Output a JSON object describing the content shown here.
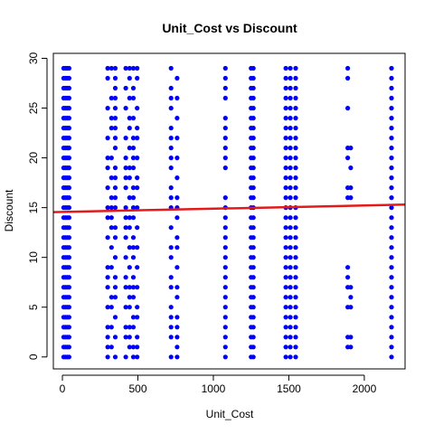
{
  "chart_data": {
    "type": "scatter",
    "title": "Unit_Cost vs Discount",
    "xlabel": "Unit_Cost",
    "ylabel": "Discount",
    "xlim": [
      -60,
      2270
    ],
    "ylim": [
      -1.2,
      30.5
    ],
    "x_ticks": [
      0,
      500,
      1000,
      1500,
      2000
    ],
    "x_tick_labels": [
      "0",
      "500",
      "1000",
      "1500",
      "2000"
    ],
    "y_ticks": [
      0,
      5,
      10,
      15,
      20,
      25,
      30
    ],
    "y_tick_labels": [
      "0",
      "5",
      "10",
      "15",
      "20",
      "25",
      "30"
    ],
    "grid": false,
    "legend": "none",
    "point_color": "#0000ff",
    "line_color": "#e31a1c",
    "series": [
      {
        "kind": "points",
        "groups": [
          {
            "x": 8,
            "y": [
              0,
              1,
              2,
              3,
              4,
              5,
              6,
              7,
              8,
              9,
              10,
              11,
              12,
              13,
              14,
              15,
              16,
              17,
              18,
              19,
              20,
              21,
              22,
              23,
              24,
              25,
              26,
              27,
              28,
              29
            ]
          },
          {
            "x": 20,
            "y": [
              0,
              1,
              2,
              3,
              4,
              5,
              6,
              7,
              8,
              9,
              10,
              11,
              12,
              13,
              14,
              15,
              16,
              17,
              18,
              19,
              20,
              21,
              22,
              23,
              24,
              25,
              26,
              27,
              28,
              29
            ]
          },
          {
            "x": 32,
            "y": [
              0,
              1,
              2,
              3,
              4,
              5,
              6,
              7,
              8,
              9,
              10,
              11,
              12,
              13,
              14,
              15,
              16,
              17,
              18,
              19,
              20,
              21,
              22,
              23,
              24,
              25,
              26,
              27,
              28,
              29
            ]
          },
          {
            "x": 44,
            "y": [
              0,
              1,
              2,
              3,
              4,
              5,
              6,
              7,
              8,
              9,
              10,
              11,
              12,
              13,
              14,
              15,
              16,
              17,
              18,
              19,
              20,
              21,
              22,
              23,
              24,
              25,
              26,
              27,
              28,
              29
            ]
          },
          {
            "x": 300,
            "y": [
              0,
              1,
              2,
              3,
              5,
              7,
              8,
              9,
              12,
              14,
              15,
              17,
              19,
              20,
              22,
              25,
              28,
              29
            ]
          },
          {
            "x": 325,
            "y": [
              1,
              3,
              5,
              6,
              9,
              11,
              13,
              14,
              15,
              16,
              18,
              20,
              23,
              24,
              26,
              29
            ]
          },
          {
            "x": 350,
            "y": [
              0,
              2,
              4,
              6,
              7,
              8,
              10,
              12,
              13,
              15,
              16,
              17,
              18,
              19,
              21,
              22,
              23,
              24,
              25,
              26,
              27,
              28,
              29
            ]
          },
          {
            "x": 420,
            "y": [
              0,
              2,
              3,
              5,
              7,
              8,
              10,
              12,
              13,
              14,
              15,
              17,
              18,
              19,
              20,
              22,
              25,
              27,
              29
            ]
          },
          {
            "x": 445,
            "y": [
              1,
              2,
              3,
              5,
              6,
              7,
              9,
              11,
              13,
              14,
              16,
              18,
              19,
              21,
              23,
              24,
              26,
              28,
              29
            ]
          },
          {
            "x": 470,
            "y": [
              0,
              1,
              3,
              4,
              6,
              7,
              8,
              10,
              11,
              12,
              14,
              15,
              16,
              17,
              19,
              20,
              21,
              22,
              24,
              26,
              27,
              29
            ]
          },
          {
            "x": 495,
            "y": [
              0,
              1,
              2,
              4,
              5,
              7,
              9,
              11,
              13,
              15,
              17,
              18,
              20,
              22,
              23,
              25,
              28,
              29
            ]
          },
          {
            "x": 720,
            "y": [
              0,
              2,
              3,
              4,
              5,
              7,
              8,
              10,
              11,
              13,
              15,
              16,
              17,
              19,
              20,
              21,
              22,
              23,
              25,
              26,
              27,
              29
            ]
          },
          {
            "x": 760,
            "y": [
              0,
              1,
              2,
              3,
              4,
              6,
              7,
              9,
              11,
              12,
              14,
              15,
              16,
              18,
              20,
              22,
              24,
              26,
              28
            ]
          },
          {
            "x": 1080,
            "y": [
              0,
              1,
              2,
              3,
              4,
              5,
              6,
              7,
              8,
              9,
              10,
              11,
              12,
              13,
              14,
              15,
              16,
              19,
              20,
              21,
              22,
              23,
              24,
              26,
              27,
              28,
              29
            ]
          },
          {
            "x": 1250,
            "y": [
              0,
              1,
              2,
              3,
              4,
              5,
              6,
              7,
              8,
              9,
              10,
              11,
              12,
              13,
              14,
              15,
              16,
              17,
              18,
              19,
              20,
              21,
              22,
              23,
              24,
              25,
              26,
              27,
              28,
              29
            ]
          },
          {
            "x": 1265,
            "y": [
              0,
              1,
              2,
              3,
              4,
              5,
              6,
              7,
              8,
              9,
              10,
              11,
              12,
              13,
              14,
              15,
              16,
              17,
              18,
              19,
              20,
              21,
              22,
              23,
              24,
              25,
              26,
              27,
              28,
              29
            ]
          },
          {
            "x": 1480,
            "y": [
              0,
              1,
              2,
              3,
              4,
              5,
              6,
              7,
              8,
              9,
              10,
              11,
              12,
              13,
              14,
              15,
              16,
              17,
              18,
              19,
              20,
              21,
              22,
              23,
              24,
              25,
              26,
              27,
              28,
              29
            ]
          },
          {
            "x": 1510,
            "y": [
              0,
              1,
              2,
              3,
              4,
              5,
              6,
              7,
              8,
              9,
              10,
              11,
              12,
              13,
              14,
              15,
              16,
              17,
              18,
              19,
              20,
              21,
              22,
              23,
              24,
              25,
              26,
              27,
              28,
              29
            ]
          },
          {
            "x": 1545,
            "y": [
              0,
              1,
              2,
              3,
              4,
              5,
              6,
              7,
              8,
              9,
              10,
              11,
              12,
              13,
              14,
              15,
              16,
              17,
              18,
              19,
              20,
              21,
              22,
              23,
              24,
              25,
              26,
              27,
              28,
              29
            ]
          },
          {
            "x": 1890,
            "y": [
              1,
              2,
              5,
              7,
              8,
              9,
              16,
              17,
              20,
              21,
              25,
              28,
              29
            ]
          },
          {
            "x": 1910,
            "y": [
              1,
              2,
              5,
              6,
              7,
              16,
              17,
              19,
              21
            ]
          },
          {
            "x": 2180,
            "y": [
              0,
              1,
              2,
              3,
              4,
              5,
              6,
              7,
              8,
              9,
              10,
              11,
              12,
              13,
              14,
              15,
              16,
              17,
              18,
              19,
              20,
              21,
              22,
              23,
              24,
              25,
              26,
              27,
              28,
              29
            ]
          }
        ]
      },
      {
        "kind": "line",
        "x": [
          -60,
          2270
        ],
        "y": [
          14.55,
          15.3
        ]
      }
    ]
  }
}
